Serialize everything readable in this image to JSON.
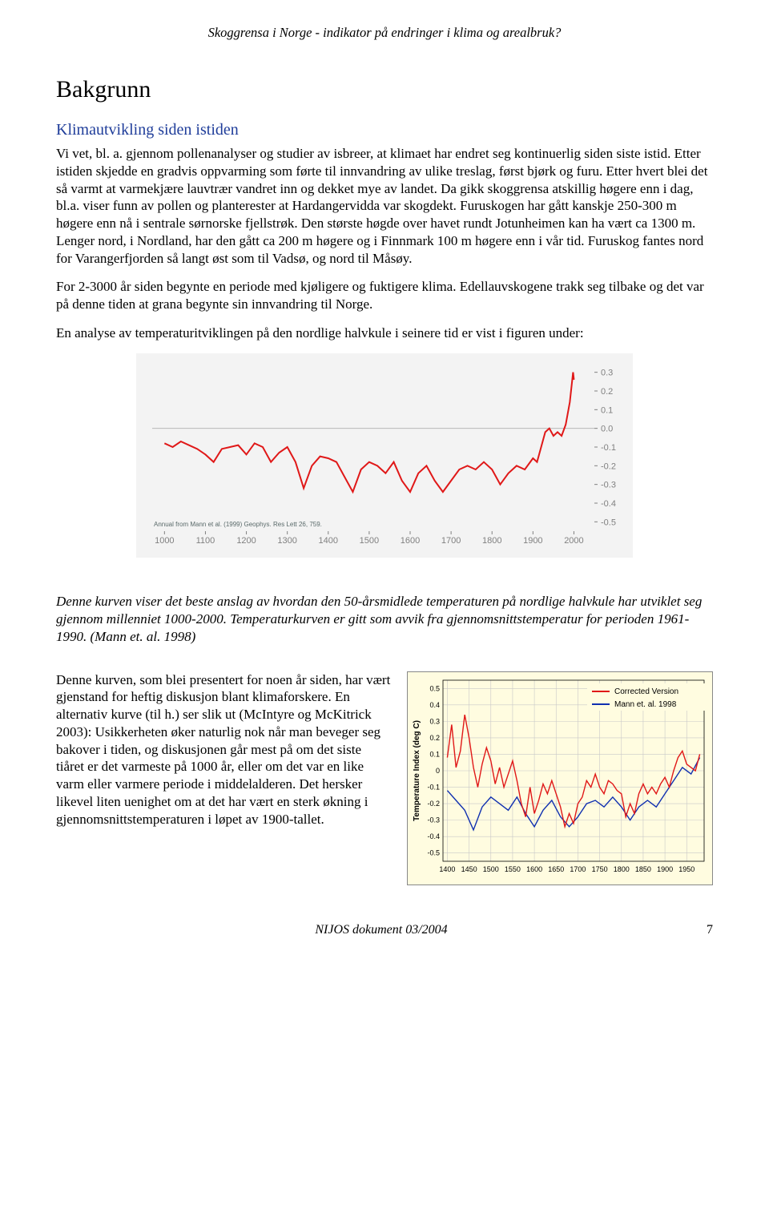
{
  "header": {
    "running": "Skoggrensa i Norge - indikator på endringer i klima og arealbruk?"
  },
  "title": "Bakgrunn",
  "subtitle": "Klimautvikling siden istiden",
  "para1": "Vi vet, bl. a. gjennom pollenanalyser og studier av isbreer, at klimaet har endret seg kontinuerlig siden siste istid. Etter istiden skjedde en gradvis oppvarming som førte til innvandring av ulike treslag, først bjørk og furu. Etter hvert blei det så varmt at varmekjære lauvtrær vandret inn og dekket mye av landet. Da gikk skoggrensa atskillig høgere enn i dag, bl.a. viser funn av pollen og planterester at Hardangervidda var skogdekt. Furuskogen har gått kanskje 250-300 m høgere enn nå i sentrale sørnorske fjellstrøk. Den største høgde over havet rundt Jotunheimen kan ha vært ca 1300 m. Lenger nord, i Nordland, har den gått ca 200 m høgere og i Finnmark 100 m høgere enn i vår tid. Furuskog fantes nord for Varangerfjorden så langt øst som til Vadsø, og nord til Måsøy.",
  "para2": "For 2-3000 år siden begynte en periode med kjøligere og fuktigere klima. Edellauvskogene trakk seg tilbake og det var på denne tiden at grana begynte sin innvandring til Norge.",
  "para3": "En analyse av temperaturitviklingen på den nordlige halvkule i seinere tid er vist i figuren under:",
  "chart1": {
    "type": "line",
    "background": "#f3f3f3",
    "line_color": "#e01818",
    "line_width": 2,
    "tick_color": "#808080",
    "tick_font_size": 11,
    "x_ticks": [
      1000,
      1100,
      1200,
      1300,
      1400,
      1500,
      1600,
      1700,
      1800,
      1900,
      2000
    ],
    "y_ticks": [
      0.3,
      0.2,
      0.1,
      0.0,
      -0.1,
      -0.2,
      -0.3,
      -0.4,
      -0.5
    ],
    "ylim": [
      -0.55,
      0.35
    ],
    "xlim": [
      970,
      2050
    ],
    "source_text": "Annual from Mann et al. (1999) Geophys. Res Lett 26, 759.",
    "source_color": "#5a6a6a",
    "source_font_size": 8,
    "series": [
      [
        1000,
        -0.08
      ],
      [
        1020,
        -0.1
      ],
      [
        1040,
        -0.07
      ],
      [
        1060,
        -0.09
      ],
      [
        1080,
        -0.11
      ],
      [
        1100,
        -0.14
      ],
      [
        1120,
        -0.18
      ],
      [
        1140,
        -0.11
      ],
      [
        1160,
        -0.1
      ],
      [
        1180,
        -0.09
      ],
      [
        1200,
        -0.14
      ],
      [
        1220,
        -0.08
      ],
      [
        1240,
        -0.1
      ],
      [
        1260,
        -0.18
      ],
      [
        1280,
        -0.13
      ],
      [
        1300,
        -0.1
      ],
      [
        1320,
        -0.18
      ],
      [
        1340,
        -0.32
      ],
      [
        1360,
        -0.2
      ],
      [
        1380,
        -0.15
      ],
      [
        1400,
        -0.16
      ],
      [
        1420,
        -0.18
      ],
      [
        1440,
        -0.26
      ],
      [
        1460,
        -0.34
      ],
      [
        1480,
        -0.22
      ],
      [
        1500,
        -0.18
      ],
      [
        1520,
        -0.2
      ],
      [
        1540,
        -0.24
      ],
      [
        1560,
        -0.18
      ],
      [
        1580,
        -0.28
      ],
      [
        1600,
        -0.34
      ],
      [
        1620,
        -0.24
      ],
      [
        1640,
        -0.2
      ],
      [
        1660,
        -0.28
      ],
      [
        1680,
        -0.34
      ],
      [
        1700,
        -0.28
      ],
      [
        1720,
        -0.22
      ],
      [
        1740,
        -0.2
      ],
      [
        1760,
        -0.22
      ],
      [
        1780,
        -0.18
      ],
      [
        1800,
        -0.22
      ],
      [
        1820,
        -0.3
      ],
      [
        1840,
        -0.24
      ],
      [
        1860,
        -0.2
      ],
      [
        1880,
        -0.22
      ],
      [
        1900,
        -0.16
      ],
      [
        1910,
        -0.18
      ],
      [
        1920,
        -0.1
      ],
      [
        1930,
        -0.02
      ],
      [
        1940,
        0.0
      ],
      [
        1950,
        -0.04
      ],
      [
        1960,
        -0.02
      ],
      [
        1970,
        -0.04
      ],
      [
        1980,
        0.02
      ],
      [
        1990,
        0.14
      ],
      [
        1998,
        0.3
      ],
      [
        2000,
        0.26
      ]
    ]
  },
  "caption": "Denne kurven viser det beste anslag av hvordan den 50-årsmidlede temperaturen på nordlige halvkule har utviklet seg gjennom millenniet 1000-2000. Temperaturkurven er gitt som avvik fra gjennomsnittstemperatur for perioden 1961-1990. (Mann et. al. 1998)",
  "para4": "Denne kurven, som blei presentert for noen år siden, har vært gjenstand for heftig diskusjon blant klimaforskere. En alternativ kurve (til h.) ser slik ut (McIntyre og McKitrick 2003): Usikkerheten øker naturlig nok når man beveger seg bakover i tiden, og diskusjonen går mest på om det siste tiåret er det varmeste på 1000 år, eller om det var en like varm eller varmere periode i middelalderen. Det hersker likevel liten uenighet om at det har vært en sterk økning i gjennomsnittstemperaturen i løpet av 1900-tallet.",
  "chart2": {
    "type": "line",
    "background": "#fffce0",
    "grid_color": "#c8c8c8",
    "tick_color": "#000",
    "tick_font_size": 9,
    "y_label": "Temperature Index (deg C)",
    "y_label_font_size": 10,
    "x_ticks": [
      1400,
      1450,
      1500,
      1550,
      1600,
      1650,
      1700,
      1750,
      1800,
      1850,
      1900,
      1950
    ],
    "y_ticks": [
      0.5,
      0.4,
      0.3,
      0.2,
      0.1,
      0,
      -0.1,
      -0.2,
      -0.3,
      -0.4,
      -0.5
    ],
    "ylim": [
      -0.55,
      0.55
    ],
    "xlim": [
      1390,
      1990
    ],
    "legend": [
      {
        "label": "Corrected Version",
        "color": "#e01818"
      },
      {
        "label": "Mann et. al. 1998",
        "color": "#1030b0"
      }
    ],
    "series_blue": [
      [
        1400,
        -0.12
      ],
      [
        1420,
        -0.18
      ],
      [
        1440,
        -0.24
      ],
      [
        1460,
        -0.36
      ],
      [
        1480,
        -0.22
      ],
      [
        1500,
        -0.16
      ],
      [
        1520,
        -0.2
      ],
      [
        1540,
        -0.24
      ],
      [
        1560,
        -0.16
      ],
      [
        1580,
        -0.26
      ],
      [
        1600,
        -0.34
      ],
      [
        1620,
        -0.24
      ],
      [
        1640,
        -0.18
      ],
      [
        1660,
        -0.28
      ],
      [
        1680,
        -0.34
      ],
      [
        1700,
        -0.28
      ],
      [
        1720,
        -0.2
      ],
      [
        1740,
        -0.18
      ],
      [
        1760,
        -0.22
      ],
      [
        1780,
        -0.16
      ],
      [
        1800,
        -0.22
      ],
      [
        1820,
        -0.3
      ],
      [
        1840,
        -0.22
      ],
      [
        1860,
        -0.18
      ],
      [
        1880,
        -0.22
      ],
      [
        1900,
        -0.14
      ],
      [
        1920,
        -0.06
      ],
      [
        1940,
        0.02
      ],
      [
        1960,
        -0.02
      ],
      [
        1980,
        0.08
      ]
    ],
    "series_red": [
      [
        1400,
        0.08
      ],
      [
        1410,
        0.28
      ],
      [
        1420,
        0.02
      ],
      [
        1430,
        0.12
      ],
      [
        1440,
        0.34
      ],
      [
        1450,
        0.2
      ],
      [
        1460,
        0.02
      ],
      [
        1470,
        -0.1
      ],
      [
        1480,
        0.04
      ],
      [
        1490,
        0.14
      ],
      [
        1500,
        0.06
      ],
      [
        1510,
        -0.08
      ],
      [
        1520,
        0.02
      ],
      [
        1530,
        -0.1
      ],
      [
        1540,
        -0.02
      ],
      [
        1550,
        0.06
      ],
      [
        1560,
        -0.06
      ],
      [
        1570,
        -0.2
      ],
      [
        1580,
        -0.28
      ],
      [
        1590,
        -0.1
      ],
      [
        1600,
        -0.26
      ],
      [
        1610,
        -0.18
      ],
      [
        1620,
        -0.08
      ],
      [
        1630,
        -0.14
      ],
      [
        1640,
        -0.06
      ],
      [
        1650,
        -0.14
      ],
      [
        1660,
        -0.22
      ],
      [
        1670,
        -0.34
      ],
      [
        1680,
        -0.26
      ],
      [
        1690,
        -0.32
      ],
      [
        1700,
        -0.2
      ],
      [
        1710,
        -0.16
      ],
      [
        1720,
        -0.06
      ],
      [
        1730,
        -0.1
      ],
      [
        1740,
        -0.02
      ],
      [
        1750,
        -0.1
      ],
      [
        1760,
        -0.14
      ],
      [
        1770,
        -0.06
      ],
      [
        1780,
        -0.08
      ],
      [
        1790,
        -0.12
      ],
      [
        1800,
        -0.14
      ],
      [
        1810,
        -0.28
      ],
      [
        1820,
        -0.2
      ],
      [
        1830,
        -0.26
      ],
      [
        1840,
        -0.14
      ],
      [
        1850,
        -0.08
      ],
      [
        1860,
        -0.14
      ],
      [
        1870,
        -0.1
      ],
      [
        1880,
        -0.14
      ],
      [
        1890,
        -0.08
      ],
      [
        1900,
        -0.04
      ],
      [
        1910,
        -0.1
      ],
      [
        1920,
        0.0
      ],
      [
        1930,
        0.08
      ],
      [
        1940,
        0.12
      ],
      [
        1950,
        0.04
      ],
      [
        1960,
        0.02
      ],
      [
        1970,
        0.0
      ],
      [
        1980,
        0.1
      ]
    ],
    "line_width": 1.4
  },
  "footer": {
    "doc": "NIJOS dokument 03/2004",
    "page": "7"
  }
}
